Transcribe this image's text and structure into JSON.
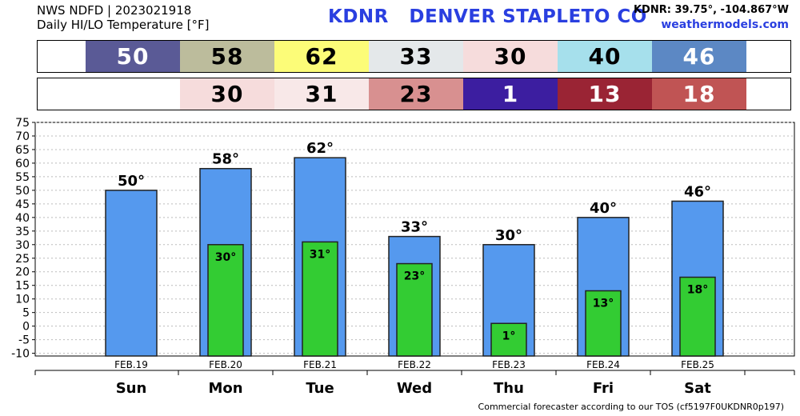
{
  "header": {
    "line1": "NWS NDFD | 2023021918",
    "line2": "Daily HI/LO Temperature [°F]",
    "station_title": "KDNR   DENVER STAPLETO CO",
    "coords": "KDNR: 39.75°, -104.867°W",
    "site": "weathermodels.com"
  },
  "high_row": [
    {
      "value": "50",
      "bg": "#5a5a96",
      "fg": "#ffffff"
    },
    {
      "value": "58",
      "bg": "#bcbc9c",
      "fg": "#000000"
    },
    {
      "value": "62",
      "bg": "#fcfc78",
      "fg": "#000000"
    },
    {
      "value": "33",
      "bg": "#e4e8ea",
      "fg": "#000000"
    },
    {
      "value": "30",
      "bg": "#f6dcdc",
      "fg": "#000000"
    },
    {
      "value": "40",
      "bg": "#a6e0ec",
      "fg": "#000000"
    },
    {
      "value": "46",
      "bg": "#5c88c4",
      "fg": "#ffffff"
    }
  ],
  "low_row": [
    {
      "value": "",
      "bg": "#ffffff",
      "fg": "#000000"
    },
    {
      "value": "30",
      "bg": "#f6dcdc",
      "fg": "#000000"
    },
    {
      "value": "31",
      "bg": "#f8e8e8",
      "fg": "#000000"
    },
    {
      "value": "23",
      "bg": "#d89090",
      "fg": "#000000"
    },
    {
      "value": "1",
      "bg": "#3c1ea0",
      "fg": "#ffffff"
    },
    {
      "value": "13",
      "bg": "#9a2434",
      "fg": "#ffffff"
    },
    {
      "value": "18",
      "bg": "#c05454",
      "fg": "#ffffff"
    }
  ],
  "chart_data": {
    "type": "bar",
    "categories": [
      "Sun",
      "Mon",
      "Tue",
      "Wed",
      "Thu",
      "Fri",
      "Sat"
    ],
    "dates": [
      "FEB.19",
      "FEB.20",
      "FEB.21",
      "FEB.22",
      "FEB.23",
      "FEB.24",
      "FEB.25"
    ],
    "series": [
      {
        "values": [
          50,
          58,
          62,
          33,
          30,
          40,
          46
        ],
        "color": "#5599ee"
      },
      {
        "values": [
          null,
          30,
          31,
          23,
          1,
          13,
          18
        ],
        "color": "#33cc33"
      }
    ],
    "high_labels": [
      "50°",
      "58°",
      "62°",
      "33°",
      "30°",
      "40°",
      "46°"
    ],
    "low_labels": [
      "",
      "30°",
      "31°",
      "23°",
      "1°",
      "13°",
      "18°"
    ],
    "yticks": [
      "75",
      "70",
      "65",
      "60",
      "55",
      "50",
      "45",
      "40",
      "35",
      "30",
      "25",
      "20",
      "15",
      "10",
      "5",
      "0",
      "-5",
      "-10"
    ],
    "ylim": [
      -11,
      75
    ],
    "grid": true
  },
  "footer": "Commercial forecaster according to our TOS (cf5197F0UKDNR0p197)"
}
